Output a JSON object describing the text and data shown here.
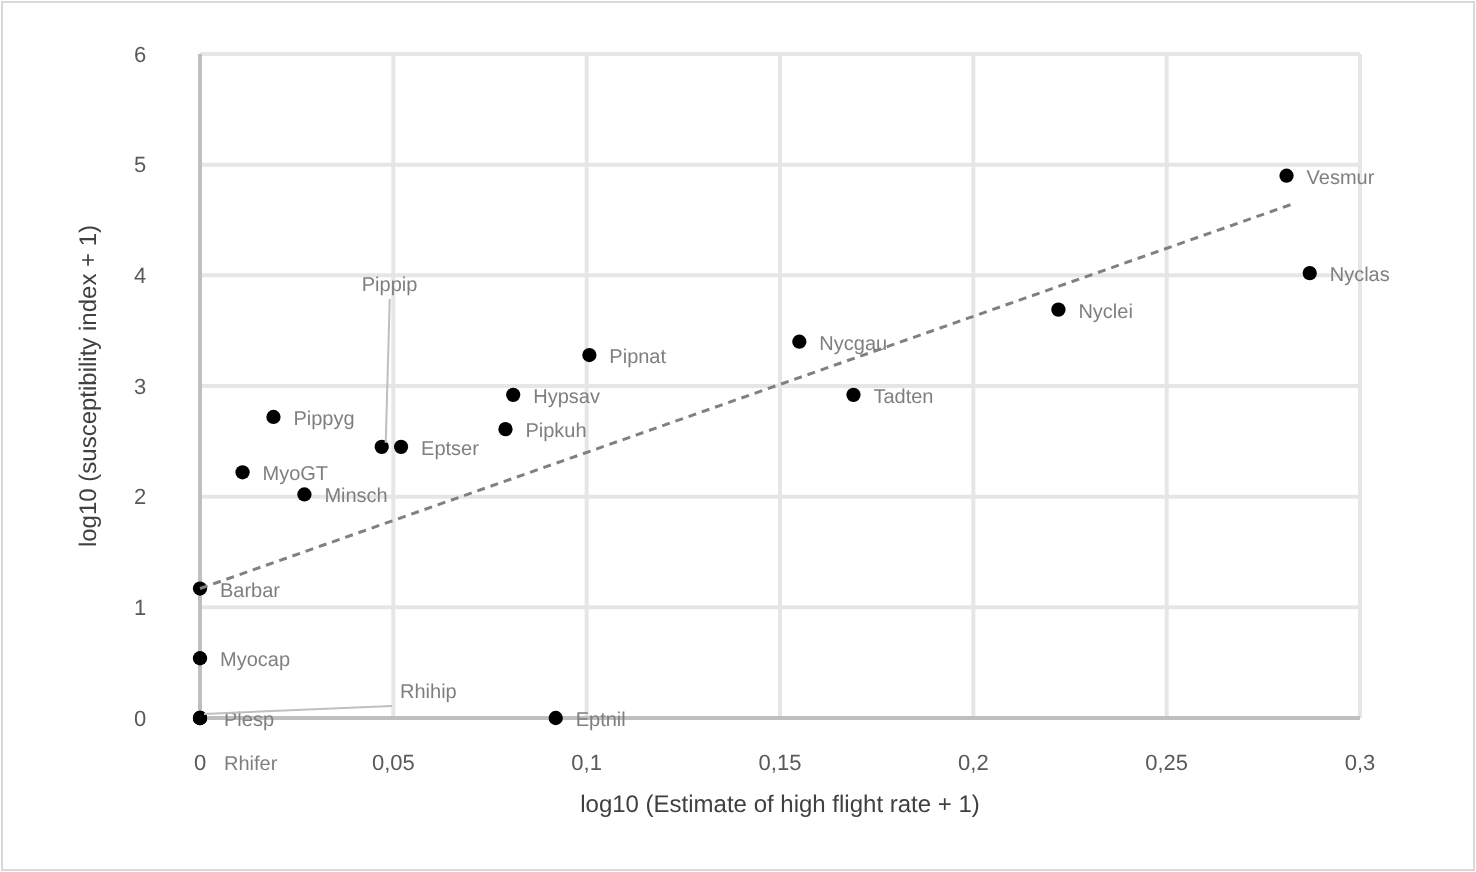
{
  "chart_data": {
    "type": "scatter",
    "xlabel": "log10 (Estimate of high flight rate + 1)",
    "ylabel": "log10 (susceptibility index + 1)",
    "xlim": [
      0,
      0.3
    ],
    "ylim": [
      0,
      6
    ],
    "xticks": [
      0,
      {
        "value": 0.05,
        "label": "0,05"
      },
      {
        "value": 0.1,
        "label": "0,1"
      },
      {
        "value": 0.15,
        "label": "0,15"
      },
      {
        "value": 0.2,
        "label": "0,2"
      },
      {
        "value": 0.25,
        "label": "0,25"
      },
      {
        "value": 0.3,
        "label": "0,3"
      }
    ],
    "yticks": [
      0,
      1,
      2,
      3,
      4,
      5,
      6
    ],
    "grid": true,
    "series": [
      {
        "color": "#000000",
        "marker": "circle",
        "x": [
          0.1007,
          0.155,
          0.169,
          0.222,
          0.281,
          0.287,
          0.081,
          0.079,
          0.047,
          0.052,
          0.019,
          0.011,
          0.027,
          0,
          0,
          0,
          0,
          0,
          0.092
        ],
        "values": [
          3.28,
          3.4,
          2.92,
          3.69,
          4.9,
          4.02,
          2.92,
          2.61,
          2.45,
          2.45,
          2.72,
          2.22,
          2.02,
          1.17,
          0.54,
          0,
          0,
          0,
          0
        ]
      },
      {
        "type": "line",
        "color": "#808080",
        "line_style": "dashed",
        "marker": "none",
        "x": [
          0,
          0.283
        ],
        "values": [
          1.17,
          4.65
        ]
      }
    ],
    "annotations": [
      {
        "text": "Pipnat",
        "x": 0.1007,
        "y": 3.28
      },
      {
        "text": "Nycgau",
        "x": 0.155,
        "y": 3.4
      },
      {
        "text": "Tadten",
        "x": 0.169,
        "y": 2.92
      },
      {
        "text": "Nyclei",
        "x": 0.222,
        "y": 3.69
      },
      {
        "text": "Vesmur",
        "x": 0.281,
        "y": 4.9
      },
      {
        "text": "Nyclas",
        "x": 0.287,
        "y": 4.02
      },
      {
        "text": "Hypsav",
        "x": 0.081,
        "y": 2.92
      },
      {
        "text": "Pipkuh",
        "x": 0.079,
        "y": 2.61
      },
      {
        "text": "Pippip",
        "x": 0.047,
        "y": 2.45
      },
      {
        "text": "Eptser",
        "x": 0.052,
        "y": 2.45
      },
      {
        "text": "Pippyg",
        "x": 0.019,
        "y": 2.72
      },
      {
        "text": "MyoGT",
        "x": 0.011,
        "y": 2.22
      },
      {
        "text": "Minsch",
        "x": 0.027,
        "y": 2.02
      },
      {
        "text": "Barbar",
        "x": 0,
        "y": 1.17
      },
      {
        "text": "Myocap",
        "x": 0,
        "y": 0.54
      },
      {
        "text": "Plesp",
        "x": 0,
        "y": 0
      },
      {
        "text": "Rhihip",
        "x": 0,
        "y": 0
      },
      {
        "text": "Rhifer",
        "x": 0,
        "y": 0
      },
      {
        "text": "Eptnil",
        "x": 0.092,
        "y": 0
      }
    ]
  }
}
